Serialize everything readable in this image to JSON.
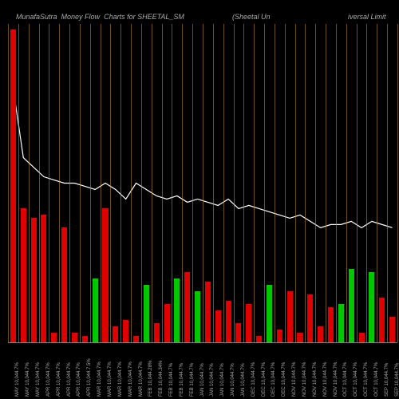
{
  "chart": {
    "type": "bar_line_combo",
    "title_left": "MunafaSutra  Money Flow  Charts for SHEETAL_SM",
    "title_mid": "(Sheetal Un",
    "title_right": "iversal Limit",
    "background_color": "#000000",
    "title_color": "#aaaaaa",
    "title_fontsize": 9,
    "grid_color": "#b88830",
    "grid_width": 0.5,
    "line_color": "#ffffff",
    "line_width": 1.2,
    "bar_color_pos": "#00c800",
    "bar_color_neg": "#e00000",
    "bar_width_ratio": 0.55,
    "x_label_color": "#aaaaaa",
    "x_label_fontsize": 6,
    "ylim_bar": [
      0,
      100
    ],
    "bars": [
      {
        "v": 98,
        "c": "neg",
        "label": "MAY 10,044.7%"
      },
      {
        "v": 42,
        "c": "neg",
        "label": "MAY 10,044.7%"
      },
      {
        "v": 39,
        "c": "neg",
        "label": "MAY 10,044.7%"
      },
      {
        "v": 40,
        "c": "neg",
        "label": "APR 10,044.7%"
      },
      {
        "v": 3,
        "c": "neg",
        "label": "APR 10,044.7%"
      },
      {
        "v": 36,
        "c": "neg",
        "label": "APR 10,044.7%"
      },
      {
        "v": 3,
        "c": "neg",
        "label": "APR 10,044.7%"
      },
      {
        "v": 2,
        "c": "neg",
        "label": "APR 10,044.7.5%"
      },
      {
        "v": 20,
        "c": "pos",
        "label": "MAR 10,044.7%"
      },
      {
        "v": 42,
        "c": "neg",
        "label": "MAR 10,044.7%"
      },
      {
        "v": 5,
        "c": "neg",
        "label": "MAR 10,044.7%"
      },
      {
        "v": 7,
        "c": "neg",
        "label": "MAR 10,044.7%"
      },
      {
        "v": 2,
        "c": "neg",
        "label": "MAR 10,044.7%"
      },
      {
        "v": 18,
        "c": "pos",
        "label": "FEB 10,044.28%"
      },
      {
        "v": 6,
        "c": "neg",
        "label": "FEB 10,044.34%"
      },
      {
        "v": 12,
        "c": "neg",
        "label": "FEB 10,044.7%"
      },
      {
        "v": 20,
        "c": "pos",
        "label": "FEB 10,044.7%"
      },
      {
        "v": 22,
        "c": "neg",
        "label": "FEB 10,044.7%"
      },
      {
        "v": 16,
        "c": "pos",
        "label": "JAN 10,044.7%"
      },
      {
        "v": 19,
        "c": "neg",
        "label": "JAN 10,044.7%"
      },
      {
        "v": 10,
        "c": "neg",
        "label": "JAN 10,044.7%"
      },
      {
        "v": 13,
        "c": "neg",
        "label": "JAN 10,044.7%"
      },
      {
        "v": 6,
        "c": "neg",
        "label": "JAN 10,044.7%"
      },
      {
        "v": 12,
        "c": "neg",
        "label": "DEC 10,044.7%"
      },
      {
        "v": 2,
        "c": "neg",
        "label": "DEC 10,044.7%"
      },
      {
        "v": 18,
        "c": "pos",
        "label": "DEC 10,044.7%"
      },
      {
        "v": 4,
        "c": "neg",
        "label": "DEC 10,044.7%"
      },
      {
        "v": 16,
        "c": "neg",
        "label": "NOV 10,044.7%"
      },
      {
        "v": 3,
        "c": "neg",
        "label": "NOV 10,044.7%"
      },
      {
        "v": 15,
        "c": "neg",
        "label": "NOV 10,044.7%"
      },
      {
        "v": 5,
        "c": "neg",
        "label": "NOV 10,044.7%"
      },
      {
        "v": 11,
        "c": "neg",
        "label": "NOV 10,044.7%"
      },
      {
        "v": 12,
        "c": "pos",
        "label": "OCT 10,044.7%"
      },
      {
        "v": 23,
        "c": "pos",
        "label": "OCT 10,044.7%"
      },
      {
        "v": 3,
        "c": "neg",
        "label": "OCT 10,044.7%"
      },
      {
        "v": 22,
        "c": "pos",
        "label": "OCT 10,044.7%"
      },
      {
        "v": 14,
        "c": "neg",
        "label": "SEP 10,044.7%"
      },
      {
        "v": 8,
        "c": "neg",
        "label": "SEP 10,044.7%"
      }
    ],
    "line_values": [
      80,
      58,
      55,
      52,
      51,
      50,
      50,
      49,
      48,
      50,
      48,
      45,
      50,
      48,
      46,
      45,
      46,
      44,
      45,
      44,
      43,
      45,
      42,
      43,
      42,
      41,
      40,
      39,
      40,
      38,
      36,
      37,
      37,
      38,
      36,
      38,
      37,
      36
    ]
  }
}
